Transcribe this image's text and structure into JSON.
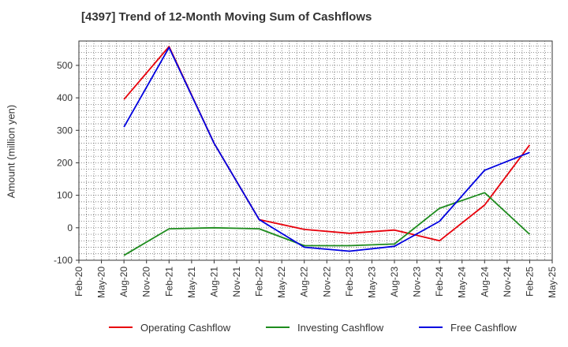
{
  "chart_data": {
    "type": "line",
    "title": "[4397]  Trend of 12-Month Moving Sum of Cashflows",
    "ylabel": "Amount (million yen)",
    "xlabel": "",
    "ylim": [
      -100,
      575
    ],
    "yticks": [
      -100,
      0,
      100,
      200,
      300,
      400,
      500
    ],
    "ytick_labels": [
      "-100",
      "0",
      "100",
      "200",
      "300",
      "400",
      "500"
    ],
    "x_categories": [
      "Feb-20",
      "May-20",
      "Aug-20",
      "Nov-20",
      "Feb-21",
      "May-21",
      "Aug-21",
      "Nov-21",
      "Feb-22",
      "May-22",
      "Aug-22",
      "Nov-22",
      "Feb-23",
      "May-23",
      "Aug-23",
      "Nov-23",
      "Feb-24",
      "May-24",
      "Aug-24",
      "Nov-24",
      "Feb-25",
      "May-25"
    ],
    "grid": true,
    "legend_position": "bottom",
    "series": [
      {
        "name": "Operating Cashflow",
        "color": "#e8000b",
        "points": [
          [
            "Aug-20",
            395
          ],
          [
            "Feb-21",
            558
          ],
          [
            "Aug-21",
            260
          ],
          [
            "Feb-22",
            25
          ],
          [
            "Aug-22",
            -5
          ],
          [
            "Feb-23",
            -17
          ],
          [
            "Aug-23",
            -7
          ],
          [
            "Feb-24",
            -40
          ],
          [
            "Aug-24",
            70
          ],
          [
            "Feb-25",
            255
          ]
        ]
      },
      {
        "name": "Investing Cashflow",
        "color": "#1e8c1e",
        "points": [
          [
            "Aug-20",
            -85
          ],
          [
            "Feb-21",
            -3
          ],
          [
            "Aug-21",
            0
          ],
          [
            "Feb-22",
            -3
          ],
          [
            "Aug-22",
            -55
          ],
          [
            "Feb-23",
            -55
          ],
          [
            "Aug-23",
            -50
          ],
          [
            "Feb-24",
            60
          ],
          [
            "Aug-24",
            108
          ],
          [
            "Feb-25",
            -20
          ]
        ]
      },
      {
        "name": "Free Cashflow",
        "color": "#0000e0",
        "points": [
          [
            "Aug-20",
            310
          ],
          [
            "Feb-21",
            555
          ],
          [
            "Aug-21",
            260
          ],
          [
            "Feb-22",
            25
          ],
          [
            "Aug-22",
            -60
          ],
          [
            "Feb-23",
            -72
          ],
          [
            "Aug-23",
            -57
          ],
          [
            "Feb-24",
            20
          ],
          [
            "Aug-24",
            177
          ],
          [
            "Feb-25",
            232
          ]
        ]
      }
    ]
  }
}
